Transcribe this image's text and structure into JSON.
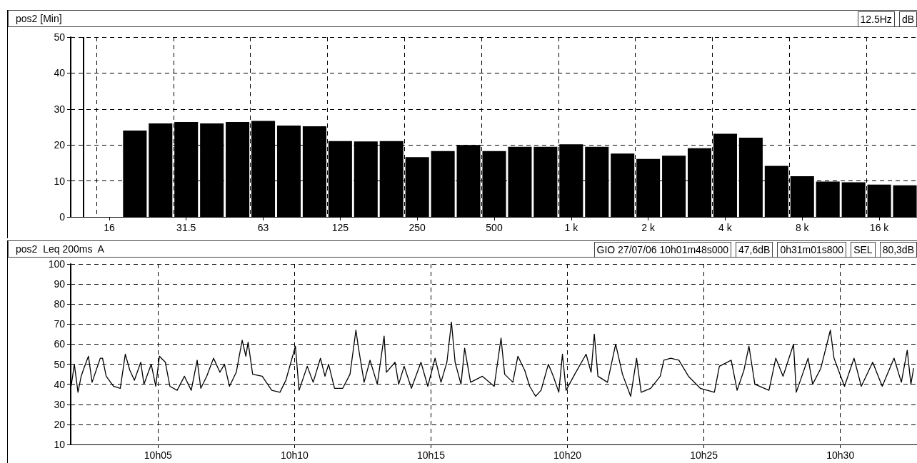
{
  "chart_data": [
    {
      "type": "bar",
      "title": "pos2 [Min]",
      "annotations": [
        "12.5Hz",
        "dB"
      ],
      "categories": [
        null,
        "16",
        null,
        null,
        "31.5",
        null,
        null,
        "63",
        null,
        null,
        "125",
        null,
        null,
        "250",
        null,
        null,
        "500",
        null,
        null,
        "1 k",
        null,
        null,
        "2 k",
        null,
        null,
        "4 k",
        null,
        null,
        "8 k",
        null,
        null,
        "16 k",
        null
      ],
      "values": [
        null,
        null,
        24.0,
        26.0,
        26.4,
        26.0,
        26.4,
        26.7,
        25.4,
        25.2,
        21.1,
        21.0,
        21.1,
        16.6,
        18.3,
        20.0,
        18.3,
        19.5,
        19.5,
        20.2,
        19.5,
        17.6,
        16.1,
        17.0,
        19.1,
        23.1,
        22.0,
        14.2,
        11.3,
        9.8,
        9.6,
        9.0,
        8.8
      ],
      "color": "#000000",
      "ylim": [
        0,
        50
      ],
      "yticks": [
        0,
        10,
        20,
        30,
        40,
        50
      ],
      "grid": true
    },
    {
      "type": "line",
      "title": "pos2  Leq 200ms  A",
      "annotations": [
        "GIO 27/07/06 10h01m48s000",
        "47,6dB",
        "0h31m01s800",
        "SEL",
        "80,3dB"
      ],
      "x": [
        "--07-27T10:01:49",
        "--07-27T10:01:56",
        "--07-27T10:02:04",
        "--07-27T10:02:11",
        "--07-27T10:02:17",
        "--07-27T10:02:27",
        "--07-27T10:02:35",
        "--07-27T10:02:53",
        "--07-27T10:02:58",
        "--07-27T10:03:06",
        "--07-27T10:03:22",
        "--07-27T10:03:37",
        "--07-27T10:03:48",
        "--07-27T10:03:58",
        "--07-27T10:04:08",
        "--07-27T10:04:22",
        "--07-27T10:04:29",
        "--07-27T10:04:45",
        "--07-27T10:04:55",
        "--07-27T10:05:03",
        "--07-27T10:05:16",
        "--07-27T10:05:26",
        "--07-27T10:05:42",
        "--07-27T10:05:58",
        "--07-27T10:06:13",
        "--07-27T10:06:26",
        "--07-27T10:06:34",
        "--07-27T10:06:47",
        "--07-27T10:07:02",
        "--07-27T10:07:16",
        "--07-27T10:07:26",
        "--07-27T10:07:37",
        "--07-27T10:07:52",
        "--07-27T10:08:05",
        "--07-27T10:08:13",
        "--07-27T10:08:18",
        "--07-27T10:08:28",
        "--07-27T10:08:49",
        "--07-27T10:09:10",
        "--07-27T10:09:28",
        "--07-27T10:09:41",
        "--07-27T10:10:02",
        "--07-27T10:10:10",
        "--07-27T10:10:28",
        "--07-27T10:10:41",
        "--07-27T10:10:57",
        "--07-27T10:11:07",
        "--07-27T10:11:15",
        "--07-27T10:11:28",
        "--07-27T10:11:46",
        "--07-27T10:12:02",
        "--07-27T10:12:15",
        "--07-27T10:12:20",
        "--07-27T10:12:33",
        "--07-27T10:12:46",
        "--07-27T10:13:02",
        "--07-27T10:13:17",
        "--07-27T10:13:22",
        "--07-27T10:13:41",
        "--07-27T10:13:49",
        "--07-27T10:14:01",
        "--07-27T10:14:17",
        "--07-27T10:14:38",
        "--07-27T10:14:53",
        "--07-27T10:15:09",
        "--07-27T10:15:22",
        "--07-27T10:15:35",
        "--07-27T10:15:45",
        "--07-27T10:15:53",
        "--07-27T10:16:06",
        "--07-27T10:16:14",
        "--07-27T10:16:27",
        "--07-27T10:16:53",
        "--07-27T10:17:19",
        "--07-27T10:17:34",
        "--07-27T10:17:42",
        "--07-27T10:18:00",
        "--07-27T10:18:11",
        "--07-27T10:18:26",
        "--07-27T10:18:37",
        "--07-27T10:18:50",
        "--07-27T10:19:02",
        "--07-27T10:19:18",
        "--07-27T10:19:29",
        "--07-27T10:19:41",
        "--07-27T10:19:49",
        "--07-27T10:19:57",
        "--07-27T10:20:16",
        "--07-27T10:20:41",
        "--07-27T10:20:52",
        "--07-27T10:20:59",
        "--07-27T10:21:07",
        "--07-27T10:21:28",
        "--07-27T10:21:46",
        "--07-27T10:22:01",
        "--07-27T10:22:19",
        "--07-27T10:22:32",
        "--07-27T10:22:42",
        "--07-27T10:23:03",
        "--07-27T10:23:24",
        "--07-27T10:23:32",
        "--07-27T10:23:47",
        "--07-27T10:24:05",
        "--07-27T10:24:26",
        "--07-27T10:24:52",
        "--07-27T10:25:23",
        "--07-27T10:25:34",
        "--07-27T10:26:00",
        "--07-27T10:26:13",
        "--07-27T10:26:28",
        "--07-27T10:26:39",
        "--07-27T10:26:52",
        "--07-27T10:27:23",
        "--07-27T10:27:38",
        "--07-27T10:27:54",
        "--07-27T10:28:17",
        "--07-27T10:28:23",
        "--07-27T10:28:49",
        "--07-27T10:28:59",
        "--07-27T10:29:17",
        "--07-27T10:29:38",
        "--07-27T10:29:46",
        "--07-27T10:30:09",
        "--07-27T10:30:30",
        "--07-27T10:30:46",
        "--07-27T10:31:11",
        "--07-27T10:31:32",
        "--07-27T10:31:58",
        "--07-27T10:32:14",
        "--07-27T10:32:27",
        "--07-27T10:32:35",
        "--07-27T10:32:41"
      ],
      "values": [
        39,
        50,
        36,
        44,
        48,
        54,
        41,
        53,
        53,
        44,
        39,
        38,
        55,
        47,
        42,
        51,
        40,
        50,
        39,
        54,
        51,
        39,
        37,
        44,
        37,
        52,
        38,
        44,
        53,
        46,
        50,
        39,
        46,
        62,
        54,
        61,
        45,
        44,
        37,
        36,
        42,
        59,
        37,
        49,
        41,
        53,
        44,
        50,
        38,
        38,
        45,
        67,
        59,
        41,
        52,
        40,
        64,
        46,
        51,
        40,
        49,
        38,
        51,
        39,
        53,
        41,
        51,
        71,
        51,
        40,
        58,
        41,
        44,
        39,
        63,
        45,
        41,
        54,
        47,
        39,
        34,
        37,
        50,
        44,
        36,
        55,
        37,
        45,
        55,
        46,
        65,
        44,
        41,
        60,
        45,
        34,
        53,
        36,
        38,
        44,
        52,
        53,
        52,
        44,
        38,
        36,
        49,
        52,
        37,
        47,
        59,
        40,
        37,
        53,
        44,
        60,
        36,
        53,
        40,
        48,
        67,
        53,
        39,
        53,
        39,
        51,
        39,
        53,
        41,
        57,
        40,
        48
      ],
      "color": "#000000",
      "marker": "none",
      "line_style": "solid",
      "grid": true,
      "xlim": [
        "--07-27T10:01:48",
        "--07-27T10:32:50"
      ],
      "ylim": [
        10,
        100
      ],
      "yticks": [
        10,
        20,
        30,
        40,
        50,
        60,
        70,
        80,
        90,
        100
      ],
      "xticks": [
        {
          "value": "--07-27T10:05",
          "label": "10h05"
        },
        {
          "value": "--07-27T10:10",
          "label": "10h10"
        },
        {
          "value": "--07-27T10:15",
          "label": "10h15"
        },
        {
          "value": "--07-27T10:20",
          "label": "10h20"
        },
        {
          "value": "--07-27T10:25",
          "label": "10h25"
        },
        {
          "value": "--07-27T10:30",
          "label": "10h30"
        }
      ]
    }
  ]
}
